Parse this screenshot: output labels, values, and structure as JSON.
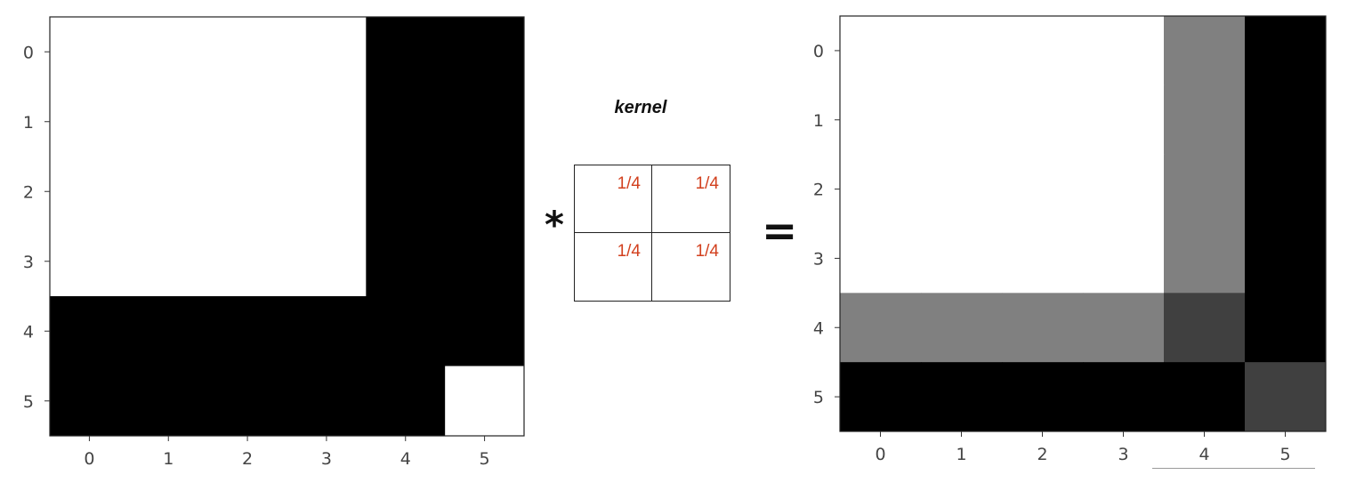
{
  "kernel": {
    "title": "kernel",
    "cells": [
      "1/4",
      "1/4",
      "1/4",
      "1/4"
    ]
  },
  "operators": {
    "convolve": "*",
    "equals": "="
  },
  "chart_data": [
    {
      "type": "heatmap",
      "colormap": "gray",
      "vmin": 0,
      "vmax": 1,
      "x_ticks": [
        "0",
        "1",
        "2",
        "3",
        "4",
        "5"
      ],
      "y_ticks": [
        "0",
        "1",
        "2",
        "3",
        "4",
        "5"
      ],
      "values": [
        [
          1,
          1,
          1,
          1,
          0,
          0
        ],
        [
          1,
          1,
          1,
          1,
          0,
          0
        ],
        [
          1,
          1,
          1,
          1,
          0,
          0
        ],
        [
          1,
          1,
          1,
          1,
          0,
          0
        ],
        [
          0,
          0,
          0,
          0,
          0,
          0
        ],
        [
          0,
          0,
          0,
          0,
          0,
          1
        ]
      ]
    },
    {
      "type": "heatmap",
      "colormap": "gray",
      "vmin": 0,
      "vmax": 1,
      "x_ticks": [
        "0",
        "1",
        "2",
        "3",
        "4",
        "5"
      ],
      "y_ticks": [
        "0",
        "1",
        "2",
        "3",
        "4",
        "5"
      ],
      "values": [
        [
          1,
          1,
          1,
          1,
          0.5,
          0
        ],
        [
          1,
          1,
          1,
          1,
          0.5,
          0
        ],
        [
          1,
          1,
          1,
          1,
          0.5,
          0
        ],
        [
          1,
          1,
          1,
          1,
          0.5,
          0
        ],
        [
          0.5,
          0.5,
          0.5,
          0.5,
          0.25,
          0
        ],
        [
          0,
          0,
          0,
          0,
          0,
          0.25
        ]
      ]
    }
  ]
}
